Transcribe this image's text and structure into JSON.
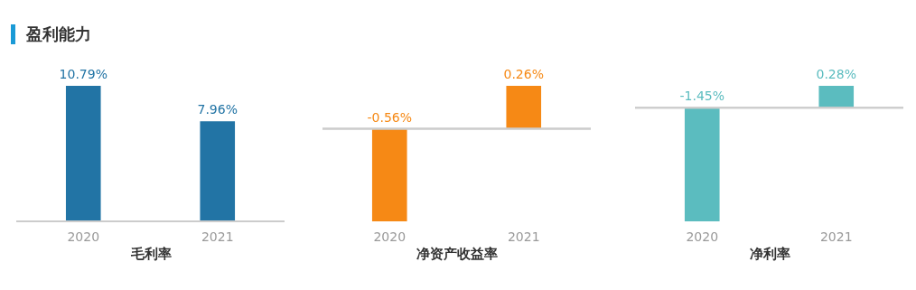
{
  "chart_data": [
    {
      "type": "bar",
      "title": "盈利能力",
      "xlabel": "毛利率",
      "categories": [
        "2020",
        "2021"
      ],
      "values": [
        10.79,
        7.96
      ],
      "colors": [
        "#2274a5",
        "#2274a5"
      ],
      "value_labels": [
        "10.79%",
        "7.96%"
      ]
    },
    {
      "type": "bar",
      "xlabel": "净资产收益率",
      "categories": [
        "2020",
        "2021"
      ],
      "values": [
        -0.56,
        0.26
      ],
      "colors": [
        "#f68915",
        "#f68915"
      ],
      "value_labels": [
        "-0.56%",
        "0.26%"
      ]
    },
    {
      "type": "bar",
      "xlabel": "净利率",
      "categories": [
        "2020",
        "2021"
      ],
      "values": [
        -1.45,
        0.28
      ],
      "colors": [
        "#5bbcbf",
        "#5bbcbf"
      ],
      "value_labels": [
        "-1.45%",
        "0.28%"
      ]
    }
  ]
}
